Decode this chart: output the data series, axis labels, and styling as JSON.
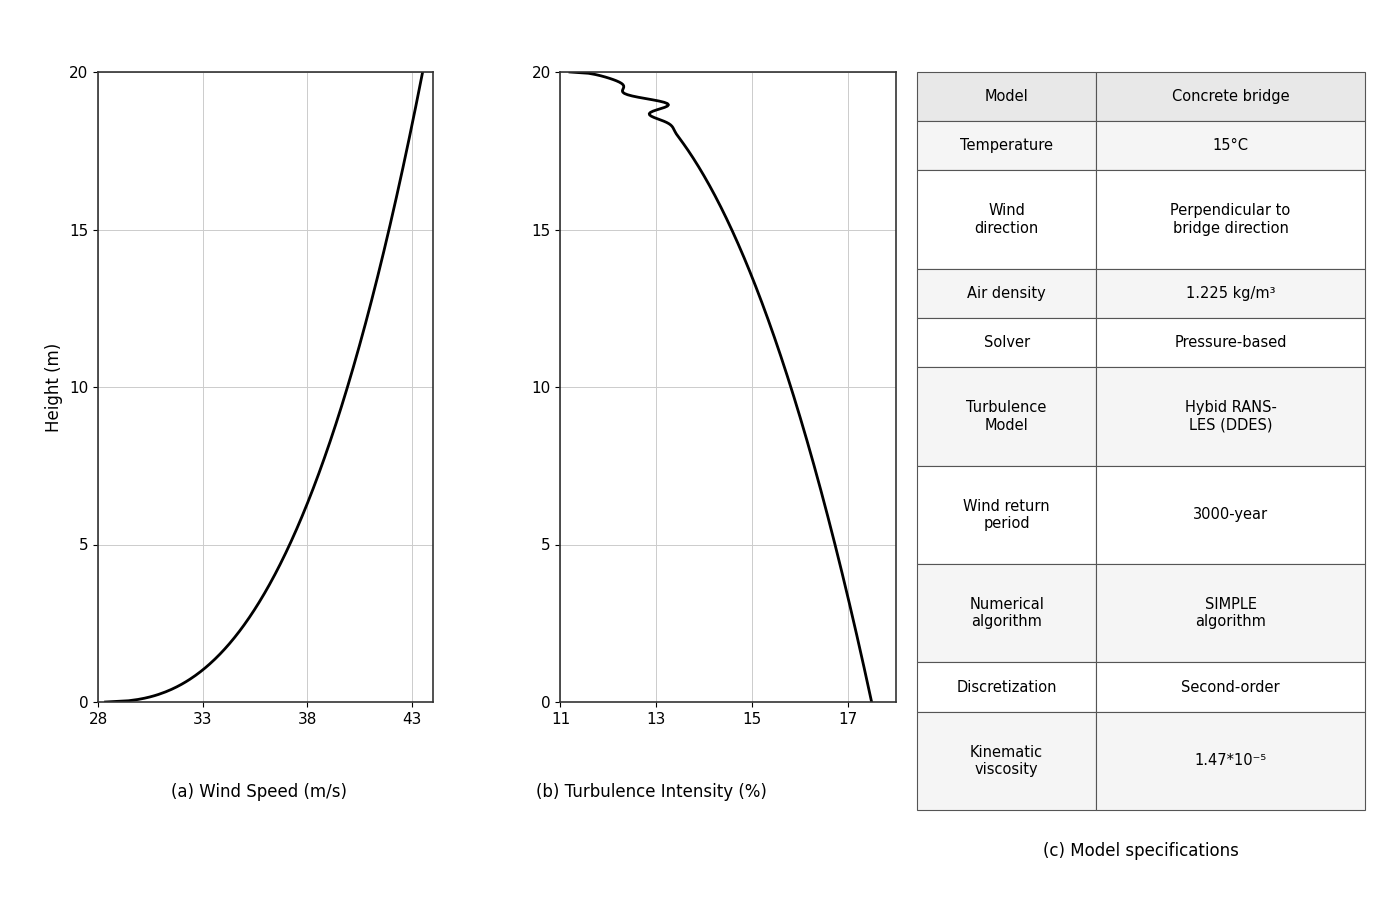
{
  "wind_xlabel": "(a) Wind Speed (m/s)",
  "turb_xlabel": "(b) Turbulence Intensity (%)",
  "table_label": "(c) Model specifications",
  "ylabel": "Height (m)",
  "wind_xlim": [
    28,
    44
  ],
  "turb_xlim": [
    11,
    18
  ],
  "ylim": [
    0,
    20
  ],
  "wind_xticks": [
    28,
    33,
    38,
    43
  ],
  "turb_xticks": [
    11,
    13,
    15,
    17
  ],
  "yticks": [
    0.0,
    5.0,
    10.0,
    15.0,
    20.0
  ],
  "grid_color": "#cccccc",
  "line_color": "#000000",
  "bg_color": "#ffffff",
  "table_rows": [
    [
      "Model",
      "Concrete bridge"
    ],
    [
      "Temperature",
      "15°C"
    ],
    [
      "Wind\ndirection",
      "Perpendicular to\nbridge direction"
    ],
    [
      "Air density",
      "1.225 kg/m³"
    ],
    [
      "Solver",
      "Pressure-based"
    ],
    [
      "Turbulence\nModel",
      "Hybid RANS-\nLES (DDES)"
    ],
    [
      "Wind return\nperiod",
      "3000-year"
    ],
    [
      "Numerical\nalgorithm",
      "SIMPLE\nalgorithm"
    ],
    [
      "Discretization",
      "Second-order"
    ],
    [
      "Kinematic\nviscosity",
      "1.47*10⁻⁵"
    ]
  ],
  "table_header_bg": "#e8e8e8",
  "table_row_bg1": "#f5f5f5",
  "table_row_bg2": "#ffffff",
  "table_border_color": "#555555",
  "font_size_axis": 11,
  "font_size_label": 12,
  "font_size_table": 10.5
}
